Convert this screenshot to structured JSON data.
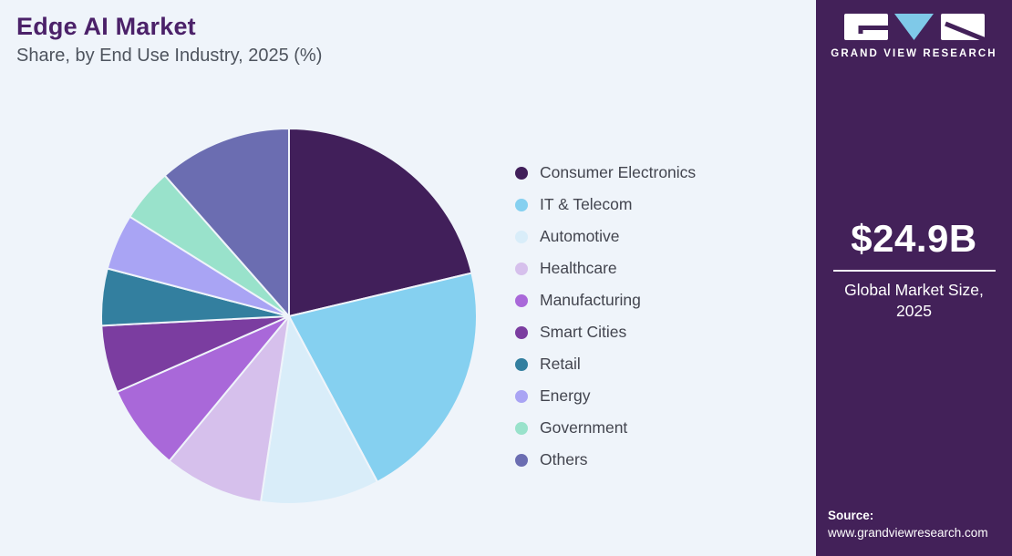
{
  "header": {
    "title": "Edge AI Market",
    "subtitle": "Share, by End Use Industry, 2025 (%)"
  },
  "chart_data": {
    "type": "pie",
    "title": "Edge AI Market Share, by End Use Industry, 2025 (%)",
    "units": "%",
    "start_angle_deg": 0,
    "direction": "clockwise",
    "legend_position": "right",
    "data_labels_shown": false,
    "segments": [
      {
        "label": "Consumer Electronics",
        "value": 21.3,
        "color": "#411f5a"
      },
      {
        "label": "IT & Telecom",
        "value": 20.9,
        "color": "#85d0f0"
      },
      {
        "label": "Automotive",
        "value": 10.2,
        "color": "#d9edf9"
      },
      {
        "label": "Healthcare",
        "value": 8.6,
        "color": "#d6c0ec"
      },
      {
        "label": "Manufacturing",
        "value": 7.4,
        "color": "#a968d9"
      },
      {
        "label": "Smart Cities",
        "value": 5.8,
        "color": "#7b3da0"
      },
      {
        "label": "Retail",
        "value": 4.9,
        "color": "#337f9f"
      },
      {
        "label": "Energy",
        "value": 4.8,
        "color": "#a9a4f4"
      },
      {
        "label": "Government",
        "value": 4.6,
        "color": "#99e2cb"
      },
      {
        "label": "Others",
        "value": 11.5,
        "color": "#6b6db1"
      }
    ]
  },
  "sidebar": {
    "logo": {
      "brand": "GRAND VIEW RESEARCH",
      "triangle_color": "#7fc9e8",
      "block_color": "#ffffff"
    },
    "market_size": {
      "value": "$24.9B",
      "caption": "Global Market Size, 2025"
    },
    "source": {
      "label": "Source:",
      "url": "www.grandviewresearch.com"
    }
  },
  "colors": {
    "background": "#eff4fa",
    "sidebar_background": "#432159",
    "title_text": "#4b2169",
    "subtitle_text": "#4e545e",
    "legend_text": "#43454f",
    "slice_separator": "#eff4fa"
  }
}
